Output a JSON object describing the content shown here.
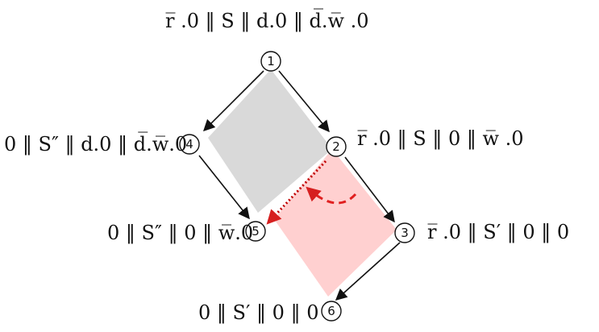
{
  "diagram": {
    "nodes": [
      {
        "id": "1",
        "label": "r̅ .0 ‖ S ‖ d.0 ‖ d̅.w̅ .0"
      },
      {
        "id": "2",
        "label": "r̅ .0 ‖ S ‖ 0 ‖ w̅ .0"
      },
      {
        "id": "3",
        "label": "r̅ .0 ‖ S′ ‖ 0 ‖ 0"
      },
      {
        "id": "4",
        "label": "0 ‖ S″ ‖ d.0 ‖ d̅.w̅.0"
      },
      {
        "id": "5",
        "label": "0 ‖ S″ ‖ 0 ‖ w̅.0"
      },
      {
        "id": "6",
        "label": "0 ‖ S′ ‖ 0 ‖ 0"
      }
    ],
    "colors": {
      "left_region": "#d9d9d9",
      "right_region": "#ffd0d0",
      "highlight": "#d62020",
      "arrow": "#111111"
    }
  }
}
